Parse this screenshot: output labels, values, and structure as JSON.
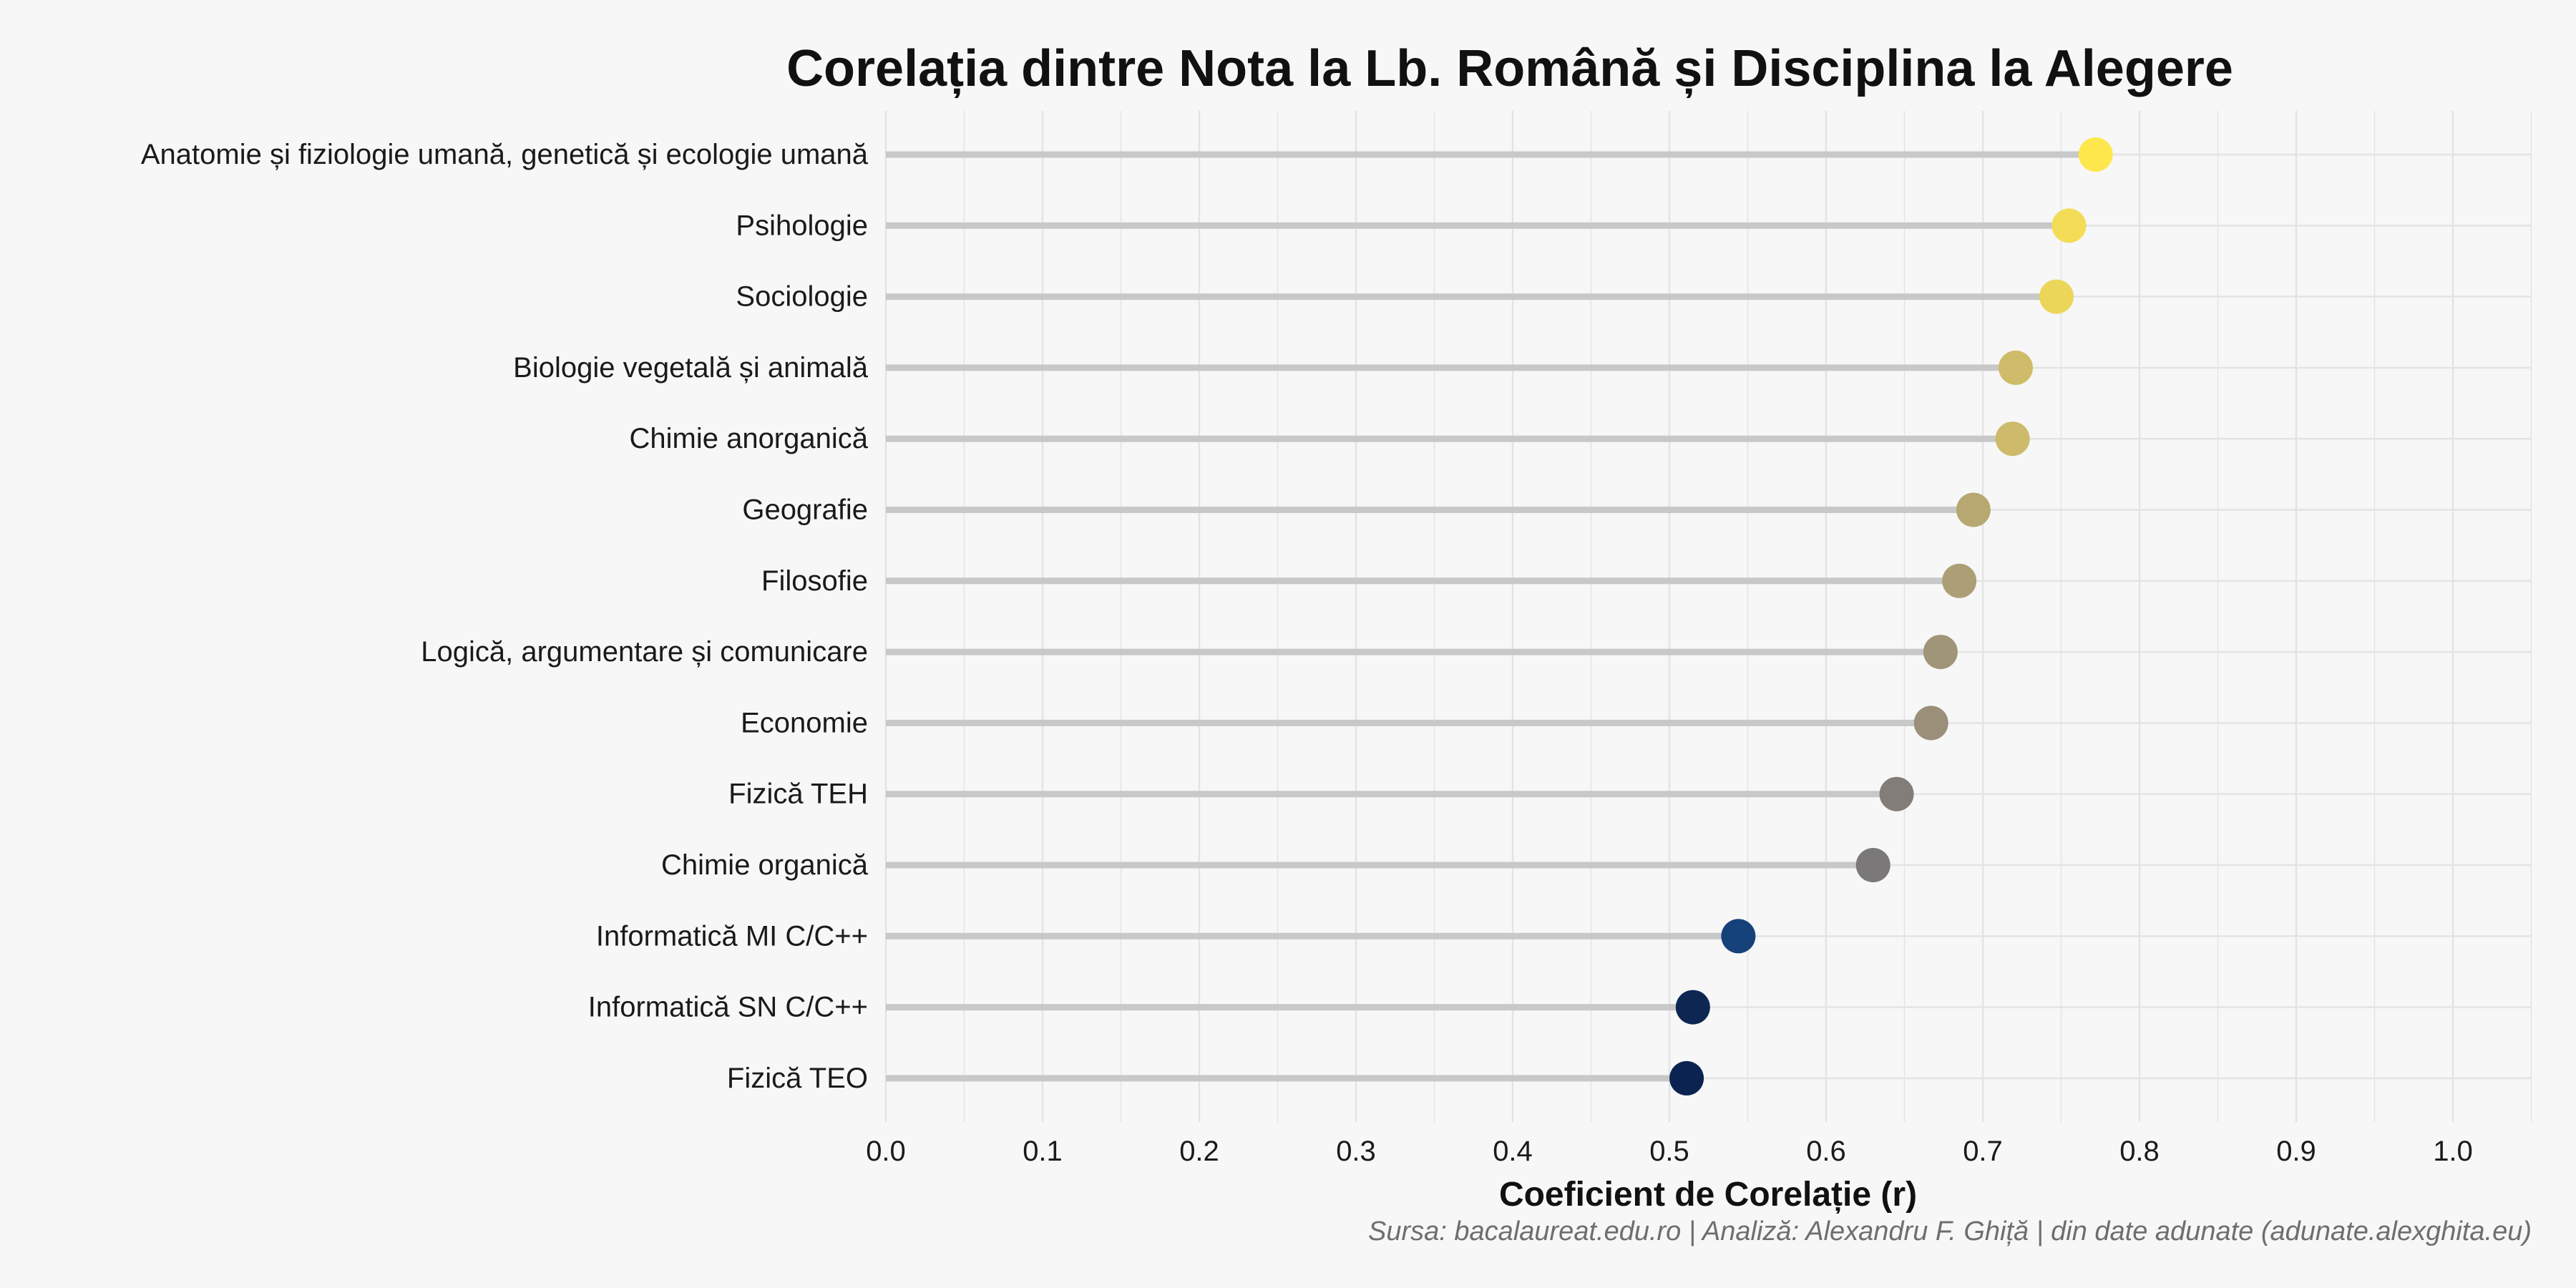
{
  "chart_data": {
    "type": "lollipop",
    "title": "Corelația dintre Nota la Lb. Română și Disciplina la Alegere",
    "xlabel": "Coeficient de Corelație (r)",
    "ylabel": "",
    "caption": "Sursa: bacalaureat.edu.ro | Analiză: Alexandru F. Ghiță | din date adunate (adunate.alexghita.eu)",
    "xlim": [
      0.0,
      1.05
    ],
    "x_ticks": [
      "0.0",
      "0.1",
      "0.2",
      "0.3",
      "0.4",
      "0.5",
      "0.6",
      "0.7",
      "0.8",
      "0.9",
      "1.0"
    ],
    "grid": true,
    "categories": [
      "Anatomie și fiziologie umană, genetică și ecologie umană",
      "Psihologie",
      "Sociologie",
      "Biologie vegetală și animală",
      "Chimie anorganică",
      "Geografie",
      "Filosofie",
      "Logică, argumentare și comunicare",
      "Economie",
      "Fizică TEH",
      "Chimie organică",
      "Informatică MI C/C++",
      "Informatică SN C/C++",
      "Fizică TEO"
    ],
    "values": [
      0.772,
      0.755,
      0.747,
      0.721,
      0.719,
      0.694,
      0.685,
      0.673,
      0.667,
      0.645,
      0.63,
      0.544,
      0.515,
      0.511
    ],
    "colors": [
      "#fde74c",
      "#f3dc56",
      "#ecd65a",
      "#cfbc6a",
      "#cdba6b",
      "#b7a872",
      "#ad9f75",
      "#a09578",
      "#9a8f79",
      "#827d79",
      "#7a7878",
      "#15427a",
      "#0d2752",
      "#0a2350"
    ],
    "stem_color": "#c8c8c8",
    "grid_color": "#e3e3e3"
  }
}
